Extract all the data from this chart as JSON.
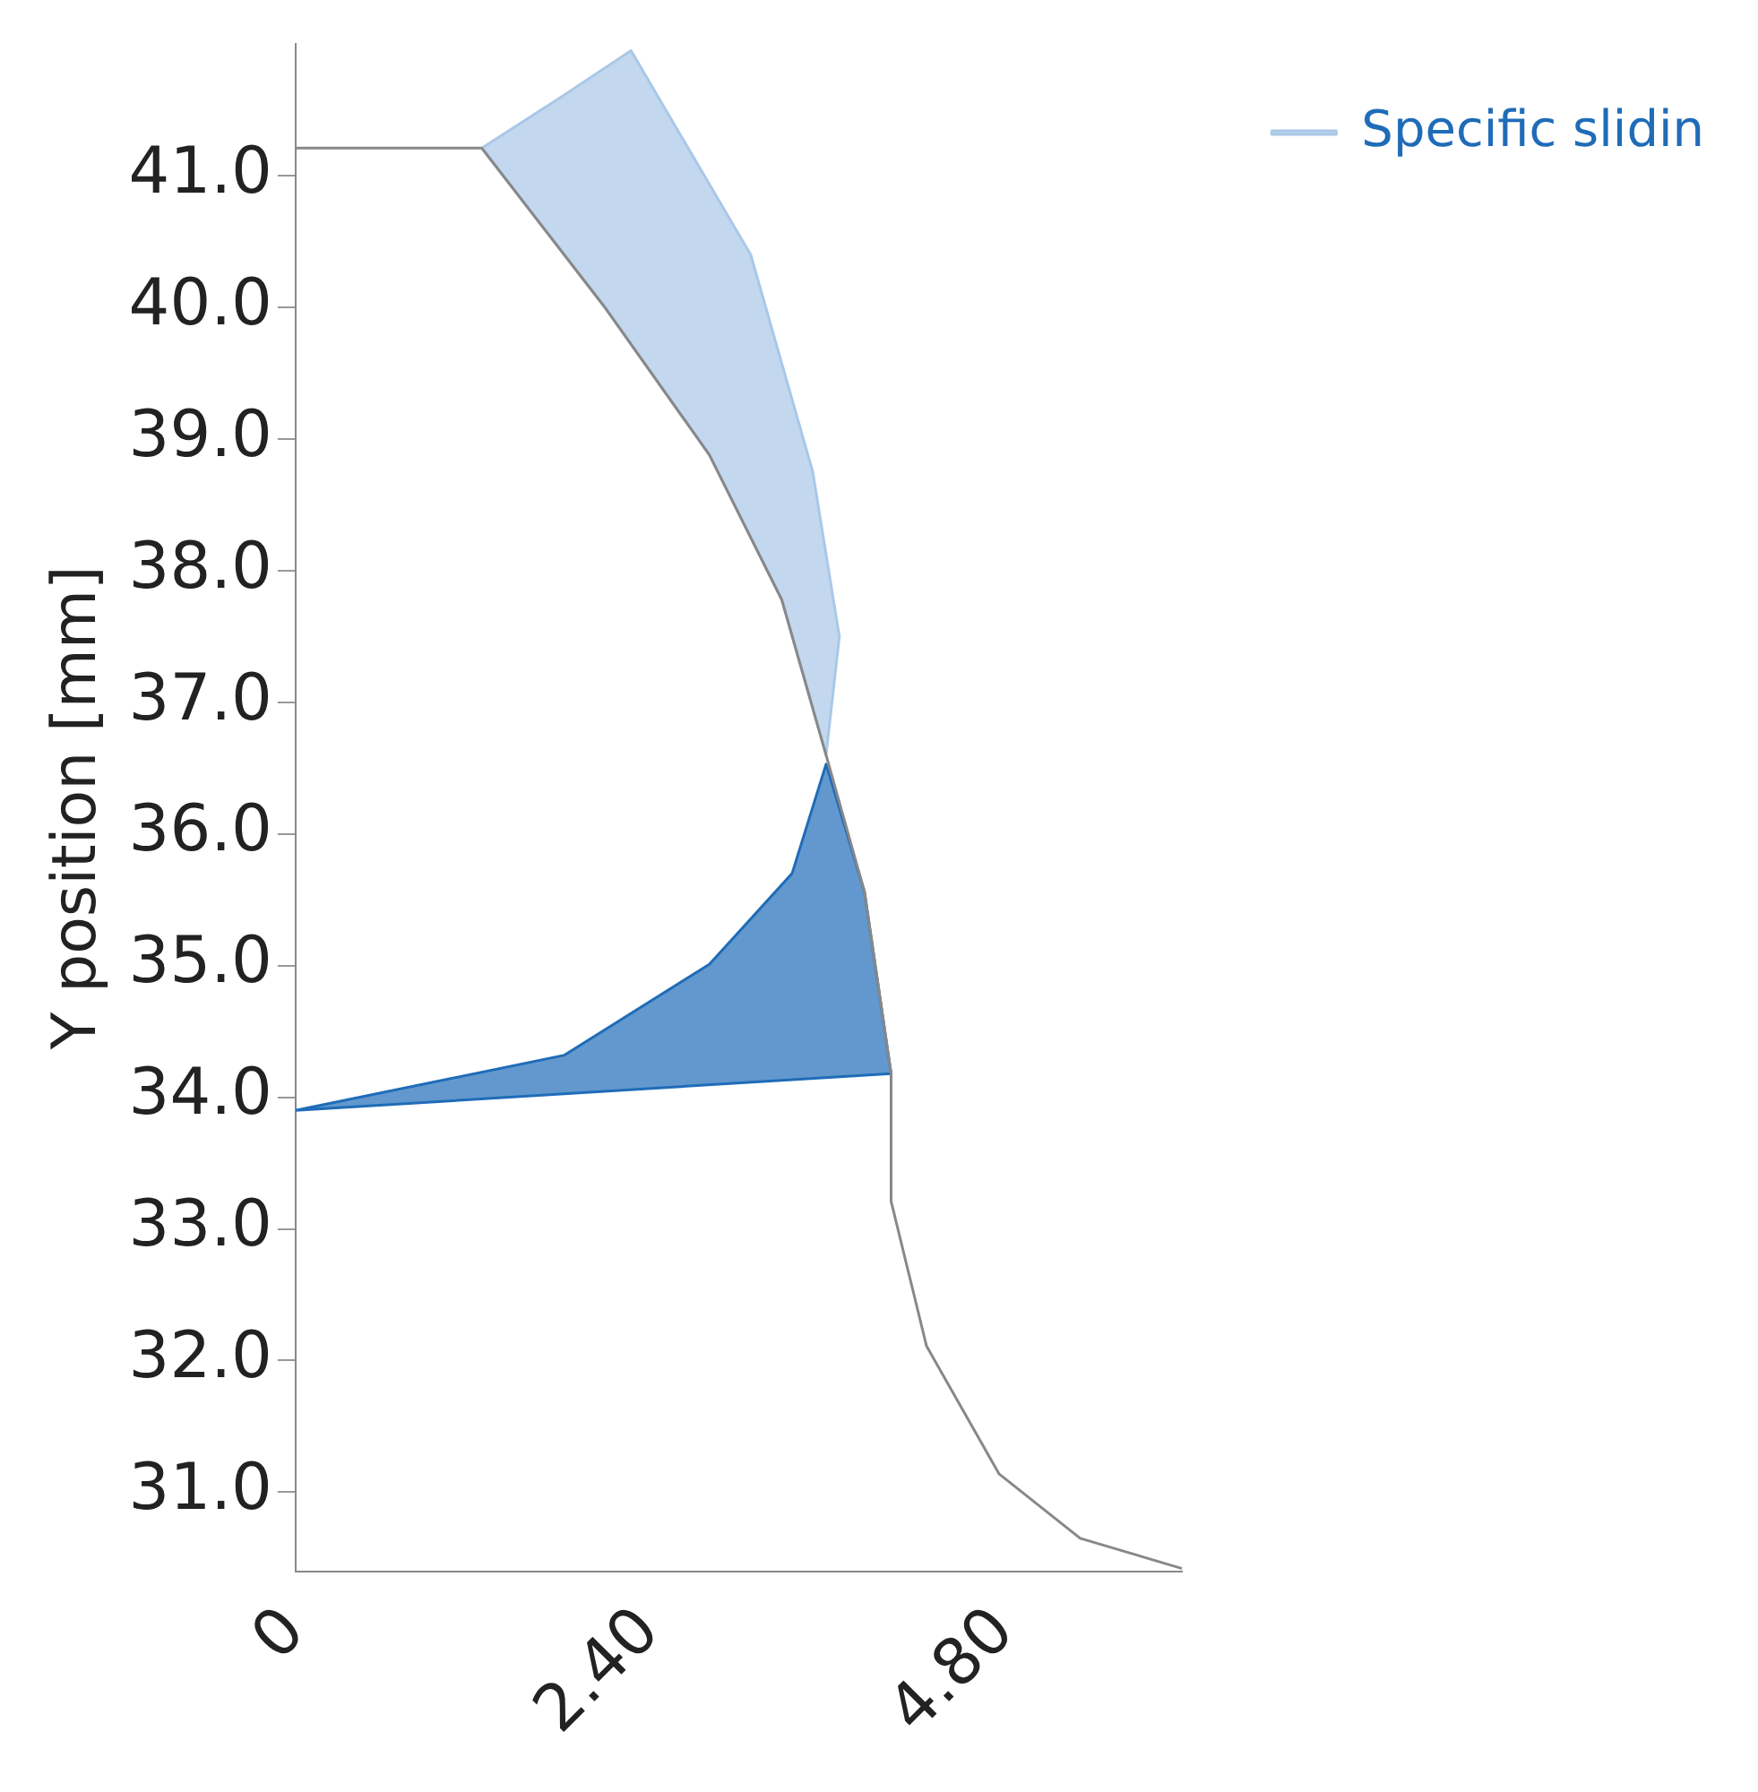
{
  "chart_data": {
    "type": "line",
    "ylabel": "Y position [mm]",
    "xlim": [
      0,
      6.0
    ],
    "ylim": [
      30.4,
      42.0
    ],
    "xticks": [
      0,
      {
        "value": 2.4,
        "label": "2.40"
      },
      {
        "value": 4.8,
        "label": "4.80"
      }
    ],
    "yticks": [
      {
        "value": 31,
        "label": "31.0"
      },
      {
        "value": 32,
        "label": "32.0"
      },
      {
        "value": 33,
        "label": "33.0"
      },
      {
        "value": 34,
        "label": "34.0"
      },
      {
        "value": 35,
        "label": "35.0"
      },
      {
        "value": 36,
        "label": "36.0"
      },
      {
        "value": 37,
        "label": "37.0"
      },
      {
        "value": 38,
        "label": "38.0"
      },
      {
        "value": 39,
        "label": "39.0"
      },
      {
        "value": 40,
        "label": "40.0"
      },
      {
        "value": 41,
        "label": "41.0"
      }
    ],
    "grid": false,
    "legend": "top right",
    "marker": "none",
    "series": [
      {
        "type": "area",
        "name": "Specific slidin",
        "color": "#a9c8e8",
        "x": [
          1.26,
          1.8,
          2.27,
          3.08,
          3.5,
          3.68,
          3.59,
          3.29,
          2.8,
          2.1,
          1.26
        ],
        "values": [
          41.21,
          41.6,
          41.95,
          40.4,
          38.75,
          37.5,
          36.6,
          37.78,
          38.88,
          39.99,
          41.21
        ]
      },
      {
        "type": "area",
        "color": "#1f6cb8",
        "x": [
          0,
          1.82,
          2.8,
          3.36,
          3.59,
          3.85,
          4.03,
          0
        ],
        "values": [
          33.9,
          34.32,
          35.01,
          35.7,
          36.53,
          35.56,
          34.18,
          33.9
        ]
      },
      {
        "type": "line",
        "color": "#888888",
        "x": [
          0,
          1.26,
          2.1,
          2.8,
          3.29,
          3.59,
          3.85,
          4.03,
          4.03,
          4.27,
          4.76,
          5.31,
          6.0
        ],
        "values": [
          41.21,
          41.21,
          39.99,
          38.88,
          37.78,
          36.6,
          35.56,
          34.18,
          33.21,
          32.11,
          31.14,
          30.65,
          30.42
        ]
      }
    ]
  }
}
